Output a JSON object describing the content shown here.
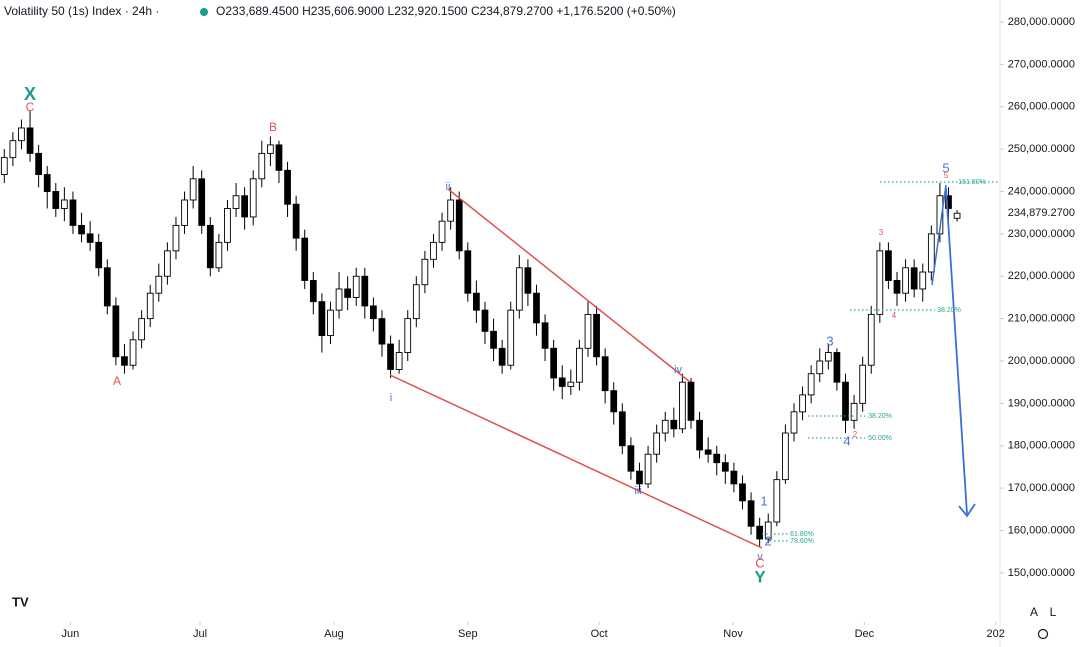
{
  "chart_data": {
    "type": "candlestick",
    "header": {
      "symbol": "Volatility 50 (1s) Index · 24h ·",
      "o_label": "O",
      "o": "233,689.4500",
      "h_label": "H",
      "h": "235,606.9000",
      "l_label": "L",
      "l": "232,920.1500",
      "c_label": "C",
      "c": "234,879.2700",
      "change": "+1,176.5200 (+0.50%)"
    },
    "up_color": "#ffffff",
    "down_color": "#000000",
    "wick_color": "#000000",
    "candles": [
      [
        244000,
        250000,
        242000,
        248000
      ],
      [
        248000,
        254000,
        246000,
        252000
      ],
      [
        252000,
        257000,
        250000,
        255000
      ],
      [
        255000,
        259000,
        247000,
        249000
      ],
      [
        249000,
        251000,
        241000,
        244000
      ],
      [
        244000,
        246000,
        236000,
        240000
      ],
      [
        240000,
        242000,
        234000,
        236000
      ],
      [
        236000,
        241000,
        233000,
        238000
      ],
      [
        238000,
        240000,
        230000,
        232000
      ],
      [
        232000,
        235000,
        228000,
        230000
      ],
      [
        230000,
        233000,
        226000,
        228000
      ],
      [
        228000,
        230000,
        220000,
        222000
      ],
      [
        222000,
        224000,
        211000,
        213000
      ],
      [
        213000,
        215000,
        199000,
        201000
      ],
      [
        201000,
        204000,
        197000,
        199000
      ],
      [
        199000,
        207000,
        198000,
        205000
      ],
      [
        205000,
        212000,
        203000,
        210000
      ],
      [
        210000,
        218000,
        208000,
        216000
      ],
      [
        216000,
        223000,
        214000,
        220000
      ],
      [
        220000,
        228000,
        218000,
        226000
      ],
      [
        226000,
        234000,
        224000,
        232000
      ],
      [
        232000,
        240000,
        230000,
        238000
      ],
      [
        238000,
        246000,
        236000,
        243000
      ],
      [
        243000,
        245000,
        230000,
        232000
      ],
      [
        232000,
        234000,
        220000,
        222000
      ],
      [
        222000,
        230000,
        221000,
        228000
      ],
      [
        228000,
        238000,
        226000,
        236000
      ],
      [
        236000,
        242000,
        234000,
        239000
      ],
      [
        239000,
        241000,
        231000,
        234000
      ],
      [
        234000,
        245000,
        232000,
        243000
      ],
      [
        243000,
        252000,
        241000,
        249000
      ],
      [
        249000,
        253000,
        246000,
        251000
      ],
      [
        251000,
        252000,
        242000,
        245000
      ],
      [
        245000,
        247000,
        234000,
        237000
      ],
      [
        237000,
        239000,
        226000,
        229000
      ],
      [
        229000,
        231000,
        217000,
        219000
      ],
      [
        219000,
        221000,
        211000,
        214000
      ],
      [
        214000,
        216000,
        202000,
        206000
      ],
      [
        206000,
        214000,
        204000,
        212000
      ],
      [
        212000,
        221000,
        210000,
        217000
      ],
      [
        217000,
        220000,
        212000,
        215000
      ],
      [
        215000,
        222000,
        213000,
        220000
      ],
      [
        220000,
        222000,
        210000,
        213000
      ],
      [
        213000,
        215000,
        207000,
        210000
      ],
      [
        210000,
        212000,
        201000,
        204000
      ],
      [
        204000,
        206000,
        196000,
        198000
      ],
      [
        198000,
        205000,
        197000,
        202000
      ],
      [
        202000,
        212000,
        200000,
        210000
      ],
      [
        210000,
        220000,
        208000,
        218000
      ],
      [
        218000,
        226000,
        216000,
        224000
      ],
      [
        224000,
        230000,
        222000,
        228000
      ],
      [
        228000,
        235000,
        226000,
        233000
      ],
      [
        233000,
        241000,
        231000,
        238000
      ],
      [
        238000,
        240000,
        224000,
        226000
      ],
      [
        226000,
        228000,
        214000,
        216000
      ],
      [
        216000,
        219000,
        209000,
        212000
      ],
      [
        212000,
        214000,
        204000,
        207000
      ],
      [
        207000,
        210000,
        200000,
        203000
      ],
      [
        203000,
        205000,
        197000,
        199000
      ],
      [
        199000,
        214000,
        198000,
        212000
      ],
      [
        212000,
        225000,
        210000,
        222000
      ],
      [
        222000,
        224000,
        213000,
        216000
      ],
      [
        216000,
        218000,
        206000,
        209000
      ],
      [
        209000,
        211000,
        200000,
        203000
      ],
      [
        203000,
        205000,
        193000,
        196000
      ],
      [
        196000,
        199000,
        191000,
        194000
      ],
      [
        194000,
        198000,
        192000,
        195000
      ],
      [
        195000,
        205000,
        193000,
        203000
      ],
      [
        203000,
        214000,
        201000,
        211000
      ],
      [
        211000,
        213000,
        199000,
        201000
      ],
      [
        201000,
        203000,
        190000,
        193000
      ],
      [
        193000,
        195000,
        185000,
        188000
      ],
      [
        188000,
        190000,
        178000,
        180000
      ],
      [
        180000,
        182000,
        172000,
        174000
      ],
      [
        174000,
        176000,
        169000,
        171000
      ],
      [
        171000,
        180000,
        170000,
        178000
      ],
      [
        178000,
        185000,
        176000,
        183000
      ],
      [
        183000,
        188000,
        181000,
        186000
      ],
      [
        186000,
        189000,
        182000,
        184000
      ],
      [
        184000,
        197000,
        183000,
        195000
      ],
      [
        195000,
        196000,
        184000,
        186000
      ],
      [
        186000,
        188000,
        177000,
        179000
      ],
      [
        179000,
        182000,
        176000,
        178000
      ],
      [
        178000,
        180000,
        173000,
        176000
      ],
      [
        176000,
        178000,
        171000,
        174000
      ],
      [
        174000,
        176000,
        169000,
        171000
      ],
      [
        171000,
        173000,
        165000,
        167000
      ],
      [
        167000,
        169000,
        159000,
        161000
      ],
      [
        161000,
        163000,
        156000,
        158000
      ],
      [
        158000,
        164000,
        157000,
        162000
      ],
      [
        162000,
        174000,
        161000,
        172000
      ],
      [
        172000,
        185000,
        171000,
        183000
      ],
      [
        183000,
        190000,
        181000,
        188000
      ],
      [
        188000,
        194000,
        186000,
        192000
      ],
      [
        192000,
        199000,
        190000,
        197000
      ],
      [
        197000,
        203000,
        195000,
        200000
      ],
      [
        200000,
        204000,
        198000,
        202000
      ],
      [
        202000,
        203000,
        193000,
        195000
      ],
      [
        195000,
        197000,
        183000,
        186000
      ],
      [
        186000,
        192000,
        184000,
        190000
      ],
      [
        190000,
        201000,
        188000,
        199000
      ],
      [
        199000,
        213000,
        197000,
        211000
      ],
      [
        211000,
        228000,
        209000,
        226000
      ],
      [
        226000,
        228000,
        217000,
        219000
      ],
      [
        219000,
        221000,
        213000,
        216000
      ],
      [
        216000,
        224000,
        214000,
        222000
      ],
      [
        222000,
        224000,
        215000,
        217000
      ],
      [
        217000,
        223000,
        214000,
        221000
      ],
      [
        221000,
        232000,
        219000,
        230000
      ],
      [
        230000,
        242000,
        228000,
        239000
      ],
      [
        239000,
        241000,
        232000,
        236000
      ],
      [
        233689.45,
        235606.9,
        232920.15,
        234879.27
      ]
    ],
    "last_price_label": "234,879.2700",
    "xlim": [
      -0.5,
      116
    ],
    "xticks": [
      {
        "value": 7.7,
        "label": "Jun"
      },
      {
        "value": 22.8,
        "label": "Jul"
      },
      {
        "value": 38.4,
        "label": "Aug"
      },
      {
        "value": 54,
        "label": "Sep"
      },
      {
        "value": 69.3,
        "label": "Oct"
      },
      {
        "value": 84.9,
        "label": "Nov"
      },
      {
        "value": 100.2,
        "label": "Dec"
      },
      {
        "value": 115.5,
        "label": "202"
      }
    ],
    "ylim": [
      138400,
      285200
    ],
    "yticks": [
      {
        "value": 150000,
        "label": "150,000.0000"
      },
      {
        "value": 160000,
        "label": "160,000.0000"
      },
      {
        "value": 170000,
        "label": "170,000.0000"
      },
      {
        "value": 180000,
        "label": "180,000.0000"
      },
      {
        "value": 190000,
        "label": "190,000.0000"
      },
      {
        "value": 200000,
        "label": "200,000.0000"
      },
      {
        "value": 210000,
        "label": "210,000.0000"
      },
      {
        "value": 220000,
        "label": "220,000.0000"
      },
      {
        "value": 230000,
        "label": "230,000.0000"
      },
      {
        "value": 240000,
        "label": "240,000.0000"
      },
      {
        "value": 250000,
        "label": "250,000.0000"
      },
      {
        "value": 260000,
        "label": "260,000.0000"
      },
      {
        "value": 270000,
        "label": "270,000.0000"
      },
      {
        "value": 280000,
        "label": "280,000.0000"
      }
    ],
    "wave_labels": [
      {
        "text": "X",
        "color": "#1e9b8a"
      },
      {
        "text": "C",
        "color": "#e0504f"
      },
      {
        "text": "A",
        "color": "#e0504f"
      },
      {
        "text": "B",
        "color": "#e0504f"
      },
      {
        "text": "ii",
        "color": "#4a74d9"
      },
      {
        "text": "i",
        "color": "#4a74d9"
      },
      {
        "text": "iii",
        "color": "#4a74d9"
      },
      {
        "text": "iv",
        "color": "#4a74d9"
      },
      {
        "text": "v",
        "color": "#4a74d9"
      },
      {
        "text": "C",
        "color": "#e0504f"
      },
      {
        "text": "Y",
        "color": "#1e9b8a"
      },
      {
        "text": "1",
        "color": "#4a74d9"
      },
      {
        "text": "2",
        "color": "#4a74d9"
      },
      {
        "text": "3",
        "color": "#4a74d9"
      },
      {
        "text": "4",
        "color": "#4a74d9"
      },
      {
        "text": "5",
        "color": "#4a74d9"
      },
      {
        "text": "3",
        "color": "#e0504f"
      },
      {
        "text": "4",
        "color": "#e0504f"
      },
      {
        "text": "5",
        "color": "#e0504f"
      },
      {
        "text": "2",
        "color": "#e0504f"
      }
    ],
    "fib_labels": [
      "161.80%",
      "38.20%",
      "38.20%",
      "50.00%",
      "61.80%",
      "78.60%"
    ],
    "axis_buttons": [
      "A",
      "L"
    ],
    "logo": "TV"
  }
}
